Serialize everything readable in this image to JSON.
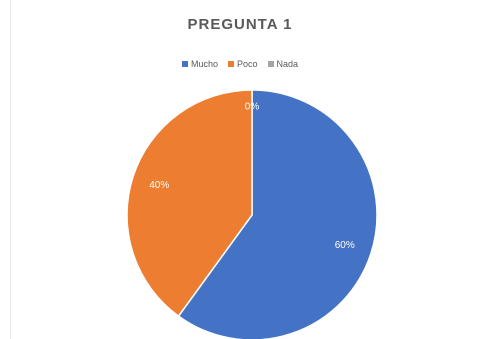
{
  "chart_data": {
    "type": "pie",
    "title": "PREGUNTA 1",
    "categories": [
      "Mucho",
      "Poco",
      "Nada"
    ],
    "values": [
      60,
      40,
      0
    ],
    "data_labels": [
      "60%",
      "40%",
      "0%"
    ],
    "colors": [
      "#4472c4",
      "#ed7d31",
      "#a5a5a5"
    ],
    "legend_position": "top"
  }
}
